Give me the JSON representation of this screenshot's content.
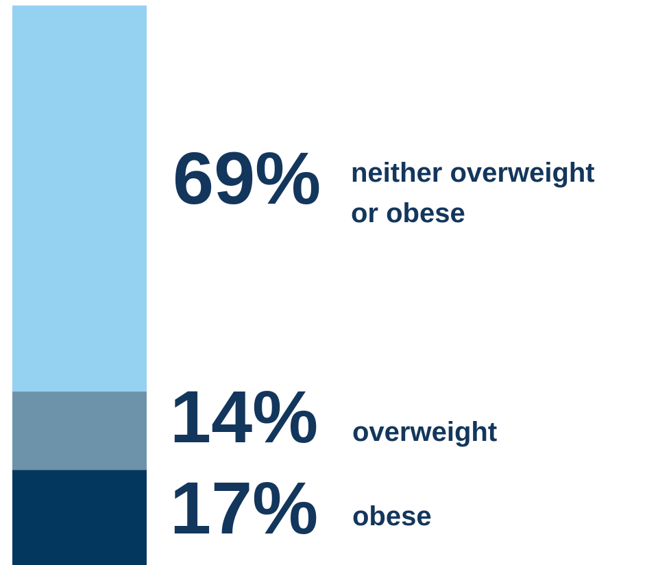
{
  "chart_data": {
    "type": "bar",
    "subtype": "stacked-100-percent",
    "title": "",
    "xlabel": "",
    "ylabel": "",
    "unit": "%",
    "ylim": [
      0,
      100
    ],
    "grid": false,
    "legend": "none",
    "segments": [
      {
        "label_lines": [
          "obese"
        ],
        "value": 17,
        "value_label": "17%",
        "color": "#03375e"
      },
      {
        "label_lines": [
          "overweight"
        ],
        "value": 14,
        "value_label": "14%",
        "color": "#6d93ab"
      },
      {
        "label_lines": [
          "neither overweight",
          "or obese"
        ],
        "value": 69,
        "value_label": "69%",
        "color": "#95d1f0"
      }
    ],
    "text_color": "#13365c"
  }
}
